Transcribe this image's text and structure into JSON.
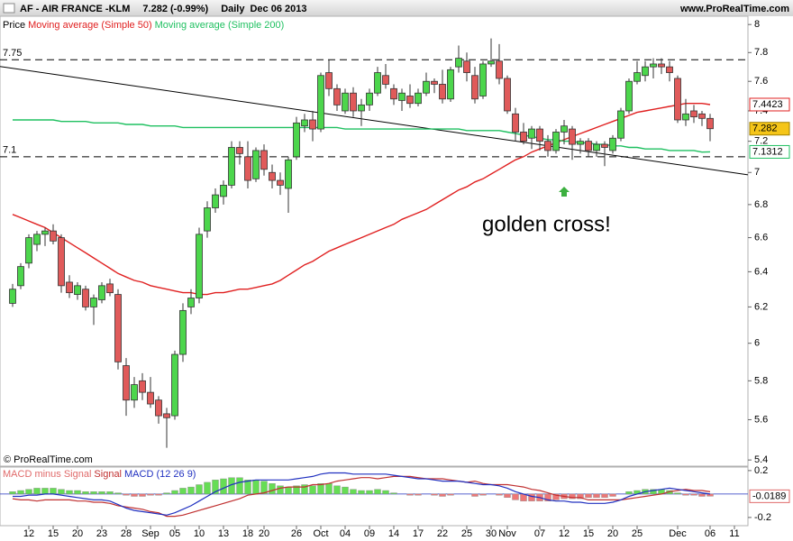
{
  "header": {
    "symbol": "AF - AIR FRANCE -KLM",
    "quote": "7.282 (-0.99%)",
    "period": "Daily",
    "date": "Dec 06 2013",
    "site": "www.ProRealTime.com"
  },
  "chart_data": [
    {
      "type": "candlestick",
      "price_label": "Price",
      "log_scale": true,
      "up_color": "#4cd64c",
      "down_color": "#e05a5a",
      "ylim": [
        5.37,
        8.06
      ],
      "yticks": [
        8,
        7.8,
        7.6,
        7.4,
        7.2,
        7,
        6.8,
        6.6,
        6.4,
        6.2,
        6,
        5.8,
        5.6,
        5.4
      ],
      "categories": [
        null,
        null,
        "12",
        null,
        null,
        "15",
        null,
        null,
        "20",
        null,
        null,
        "23",
        null,
        null,
        "28",
        null,
        null,
        "Sep",
        null,
        null,
        "05",
        null,
        null,
        "10",
        null,
        null,
        "13",
        null,
        null,
        "18",
        null,
        "20",
        null,
        null,
        null,
        "26",
        null,
        null,
        "Oct",
        null,
        null,
        "04",
        null,
        null,
        "09",
        null,
        null,
        "14",
        null,
        null,
        "17",
        null,
        null,
        "22",
        null,
        null,
        "25",
        null,
        null,
        "30",
        null,
        "Nov",
        null,
        null,
        null,
        "07",
        null,
        null,
        "12",
        null,
        null,
        "15",
        null,
        null,
        "20",
        null,
        null,
        "25",
        null,
        null,
        null,
        null,
        "Dec",
        null,
        null,
        null,
        "06",
        null,
        null,
        "11"
      ],
      "open": [
        6.22,
        6.32,
        6.45,
        6.56,
        6.62,
        6.64,
        6.6,
        6.34,
        6.27,
        6.3,
        6.2,
        6.24,
        6.33,
        6.27,
        5.88,
        5.7,
        5.8,
        5.74,
        5.7,
        5.63,
        5.62,
        5.94,
        6.2,
        6.25,
        6.64,
        6.78,
        6.85,
        6.92,
        7.16,
        7.1,
        6.96,
        7.14,
        7.0,
        6.95,
        6.9,
        7.1,
        7.3,
        7.34,
        7.28,
        7.66,
        7.55,
        7.4,
        7.52,
        7.4,
        7.44,
        7.52,
        7.64,
        7.55,
        7.47,
        7.5,
        7.45,
        7.52,
        7.6,
        7.58,
        7.48,
        7.7,
        7.74,
        7.64,
        7.5,
        7.72,
        7.74,
        7.62,
        7.38,
        7.26,
        7.22,
        7.28,
        7.2,
        7.14,
        7.26,
        7.28,
        7.18,
        7.2,
        7.14,
        7.18,
        7.14,
        7.22,
        7.4,
        7.6,
        7.64,
        7.7,
        7.72,
        7.7,
        7.62,
        7.34,
        7.4,
        7.38,
        7.35,
        null,
        null,
        null
      ],
      "high": [
        6.33,
        6.45,
        6.62,
        6.64,
        6.66,
        6.68,
        6.62,
        6.38,
        6.34,
        6.32,
        6.27,
        6.34,
        6.36,
        6.3,
        5.92,
        5.82,
        5.84,
        5.82,
        5.72,
        5.66,
        5.96,
        6.22,
        6.3,
        6.66,
        6.82,
        6.9,
        6.95,
        7.2,
        7.2,
        7.2,
        7.16,
        7.18,
        7.05,
        7.0,
        7.1,
        7.36,
        7.38,
        7.4,
        7.66,
        7.75,
        7.58,
        7.55,
        7.56,
        7.48,
        7.55,
        7.7,
        7.72,
        7.58,
        7.55,
        7.58,
        7.55,
        7.66,
        7.62,
        7.68,
        7.7,
        7.85,
        7.8,
        7.7,
        7.74,
        7.9,
        7.86,
        7.64,
        7.42,
        7.32,
        7.3,
        7.3,
        7.24,
        7.28,
        7.34,
        7.3,
        7.22,
        7.22,
        7.2,
        7.2,
        7.24,
        7.42,
        7.62,
        7.74,
        7.74,
        7.76,
        7.76,
        7.74,
        7.64,
        7.48,
        7.44,
        7.4,
        7.38,
        null,
        null,
        null
      ],
      "low": [
        6.2,
        6.3,
        6.42,
        6.52,
        6.55,
        6.56,
        6.28,
        6.25,
        6.24,
        6.18,
        6.1,
        6.22,
        6.26,
        5.86,
        5.62,
        5.66,
        5.7,
        5.66,
        5.58,
        5.46,
        5.6,
        5.9,
        6.16,
        6.22,
        6.6,
        6.75,
        6.8,
        6.9,
        7.05,
        6.9,
        6.94,
        6.98,
        6.9,
        6.86,
        6.75,
        7.08,
        7.26,
        7.2,
        7.26,
        7.5,
        7.4,
        7.38,
        7.36,
        7.3,
        7.4,
        7.5,
        7.55,
        7.44,
        7.4,
        7.42,
        7.43,
        7.5,
        7.52,
        7.45,
        7.46,
        7.66,
        7.6,
        7.45,
        7.48,
        7.7,
        7.58,
        7.38,
        7.2,
        7.18,
        7.15,
        7.14,
        7.1,
        7.12,
        7.18,
        7.08,
        7.12,
        7.1,
        7.1,
        7.04,
        7.12,
        7.2,
        7.38,
        7.58,
        7.6,
        7.62,
        7.65,
        7.6,
        7.32,
        7.3,
        7.32,
        7.3,
        7.2,
        null,
        null,
        null
      ],
      "close": [
        6.3,
        6.43,
        6.6,
        6.62,
        6.64,
        6.58,
        6.32,
        6.28,
        6.32,
        6.2,
        6.25,
        6.32,
        6.28,
        5.9,
        5.7,
        5.78,
        5.74,
        5.68,
        5.62,
        5.61,
        5.94,
        6.18,
        6.25,
        6.62,
        6.78,
        6.86,
        6.92,
        7.16,
        7.12,
        6.95,
        7.14,
        7.02,
        6.95,
        6.92,
        7.08,
        7.32,
        7.34,
        7.28,
        7.64,
        7.55,
        7.44,
        7.52,
        7.4,
        7.44,
        7.52,
        7.66,
        7.58,
        7.48,
        7.52,
        7.45,
        7.52,
        7.6,
        7.58,
        7.48,
        7.68,
        7.76,
        7.66,
        7.48,
        7.72,
        7.74,
        7.62,
        7.4,
        7.26,
        7.2,
        7.28,
        7.2,
        7.14,
        7.26,
        7.3,
        7.18,
        7.2,
        7.14,
        7.18,
        7.16,
        7.22,
        7.4,
        7.6,
        7.66,
        7.7,
        7.72,
        7.7,
        7.66,
        7.34,
        7.38,
        7.36,
        7.35,
        7.282,
        null,
        null,
        null
      ],
      "series": [
        {
          "name": "Moving average (Simple 50)",
          "color": "#e02020",
          "values": [
            6.74,
            6.72,
            6.7,
            6.68,
            6.66,
            6.63,
            6.6,
            6.57,
            6.54,
            6.51,
            6.48,
            6.45,
            6.42,
            6.39,
            6.37,
            6.35,
            6.34,
            6.32,
            6.31,
            6.3,
            6.29,
            6.28,
            6.28,
            6.27,
            6.27,
            6.28,
            6.28,
            6.29,
            6.3,
            6.3,
            6.31,
            6.32,
            6.33,
            6.35,
            6.38,
            6.41,
            6.44,
            6.46,
            6.49,
            6.52,
            6.54,
            6.56,
            6.58,
            6.6,
            6.62,
            6.64,
            6.66,
            6.68,
            6.71,
            6.73,
            6.75,
            6.77,
            6.8,
            6.83,
            6.86,
            6.89,
            6.91,
            6.94,
            6.96,
            6.99,
            7.02,
            7.05,
            7.08,
            7.1,
            7.13,
            7.15,
            7.17,
            7.19,
            7.21,
            7.23,
            7.25,
            7.27,
            7.29,
            7.31,
            7.33,
            7.35,
            7.37,
            7.39,
            7.4,
            7.41,
            7.42,
            7.43,
            7.44,
            7.45,
            7.45,
            7.45,
            7.4423,
            null,
            null,
            null
          ]
        },
        {
          "name": "Moving average (Simple 200)",
          "color": "#1fc060",
          "values": [
            7.34,
            7.34,
            7.34,
            7.34,
            7.34,
            7.34,
            7.33,
            7.33,
            7.33,
            7.33,
            7.32,
            7.32,
            7.32,
            7.32,
            7.31,
            7.31,
            7.31,
            7.3,
            7.3,
            7.3,
            7.3,
            7.29,
            7.29,
            7.29,
            7.29,
            7.29,
            7.29,
            7.29,
            7.29,
            7.29,
            7.29,
            7.29,
            7.29,
            7.29,
            7.29,
            7.29,
            7.29,
            7.29,
            7.29,
            7.29,
            7.29,
            7.28,
            7.28,
            7.28,
            7.28,
            7.28,
            7.28,
            7.28,
            7.28,
            7.28,
            7.28,
            7.28,
            7.28,
            7.28,
            7.28,
            7.28,
            7.27,
            7.27,
            7.27,
            7.27,
            7.27,
            7.26,
            7.25,
            7.24,
            7.23,
            7.22,
            7.21,
            7.21,
            7.2,
            7.2,
            7.19,
            7.19,
            7.18,
            7.18,
            7.17,
            7.17,
            7.16,
            7.16,
            7.15,
            7.15,
            7.15,
            7.14,
            7.14,
            7.14,
            7.14,
            7.13,
            7.1312,
            null,
            null,
            null
          ]
        }
      ],
      "hlines": [
        7.75,
        7.1
      ],
      "trendline": [
        7.69,
        7.02
      ],
      "annotation": "golden cross!",
      "copyright": "© ProRealTime.com"
    },
    {
      "type": "combo",
      "ylim": [
        -0.27,
        0.23
      ],
      "yticks": [
        0.2,
        -0.2
      ],
      "series": [
        {
          "name": "MACD minus Signal",
          "type": "bar",
          "color": "#e06a6a",
          "up_color": "#66dd55",
          "down_color": "#ee7777",
          "values": [
            0.02,
            0.03,
            0.04,
            0.05,
            0.05,
            0.05,
            0.04,
            0.03,
            0.03,
            0.02,
            0.02,
            0.02,
            0.02,
            0.01,
            -0.01,
            -0.02,
            -0.02,
            -0.01,
            -0.01,
            0.01,
            0.03,
            0.05,
            0.06,
            0.08,
            0.1,
            0.12,
            0.13,
            0.14,
            0.14,
            0.12,
            0.12,
            0.11,
            0.09,
            0.07,
            0.06,
            0.07,
            0.08,
            0.07,
            0.09,
            0.09,
            0.07,
            0.06,
            0.04,
            0.03,
            0.03,
            0.04,
            0.03,
            0.01,
            0,
            -0.01,
            -0.01,
            0,
            -0.01,
            -0.02,
            -0.01,
            0,
            0,
            -0.02,
            -0.01,
            0,
            -0.01,
            -0.03,
            -0.05,
            -0.06,
            -0.06,
            -0.06,
            -0.06,
            -0.05,
            -0.04,
            -0.04,
            -0.04,
            -0.03,
            -0.03,
            -0.03,
            -0.02,
            0,
            0.02,
            0.03,
            0.04,
            0.04,
            0.04,
            0.03,
            0.01,
            -0.01,
            -0.01,
            -0.02,
            -0.0189,
            null,
            null,
            null
          ]
        },
        {
          "name": "Signal",
          "type": "line",
          "color": "#c03030",
          "values": [
            -0.04,
            -0.05,
            -0.05,
            -0.06,
            -0.05,
            -0.05,
            -0.05,
            -0.05,
            -0.06,
            -0.06,
            -0.07,
            -0.07,
            -0.08,
            -0.1,
            -0.11,
            -0.12,
            -0.13,
            -0.15,
            -0.16,
            -0.19,
            -0.19,
            -0.18,
            -0.16,
            -0.14,
            -0.12,
            -0.1,
            -0.08,
            -0.06,
            -0.04,
            -0.01,
            0,
            0.01,
            0.03,
            0.05,
            0.06,
            0.06,
            0.06,
            0.08,
            0.08,
            0.09,
            0.11,
            0.12,
            0.13,
            0.14,
            0.14,
            0.13,
            0.14,
            0.15,
            0.15,
            0.15,
            0.14,
            0.13,
            0.13,
            0.13,
            0.12,
            0.11,
            0.1,
            0.11,
            0.09,
            0.08,
            0.08,
            0.08,
            0.07,
            0.06,
            0.04,
            0.03,
            0.01,
            -0.01,
            -0.02,
            -0.03,
            -0.03,
            -0.05,
            -0.05,
            -0.05,
            -0.05,
            -0.05,
            -0.04,
            -0.03,
            -0.02,
            -0.01,
            0,
            0.02,
            0.03,
            0.04,
            0.03,
            0.03,
            0.0189,
            null,
            null,
            null
          ]
        },
        {
          "name": "MACD (12 26 9)",
          "type": "line",
          "color": "#2030c0",
          "values": [
            -0.02,
            -0.02,
            -0.01,
            -0.01,
            0,
            0,
            -0.01,
            -0.02,
            -0.03,
            -0.04,
            -0.05,
            -0.05,
            -0.06,
            -0.09,
            -0.12,
            -0.14,
            -0.15,
            -0.16,
            -0.17,
            -0.18,
            -0.16,
            -0.13,
            -0.1,
            -0.06,
            -0.02,
            0.02,
            0.05,
            0.08,
            0.1,
            0.11,
            0.12,
            0.12,
            0.12,
            0.12,
            0.12,
            0.13,
            0.14,
            0.15,
            0.17,
            0.18,
            0.18,
            0.18,
            0.17,
            0.17,
            0.17,
            0.17,
            0.17,
            0.16,
            0.15,
            0.14,
            0.13,
            0.13,
            0.12,
            0.11,
            0.11,
            0.11,
            0.1,
            0.09,
            0.08,
            0.08,
            0.07,
            0.05,
            0.02,
            0,
            -0.02,
            -0.03,
            -0.05,
            -0.06,
            -0.06,
            -0.07,
            -0.07,
            -0.08,
            -0.08,
            -0.08,
            -0.07,
            -0.05,
            -0.02,
            0,
            0.02,
            0.03,
            0.04,
            0.05,
            0.04,
            0.03,
            0.02,
            0.01,
            0,
            null,
            null,
            null
          ]
        }
      ]
    }
  ]
}
